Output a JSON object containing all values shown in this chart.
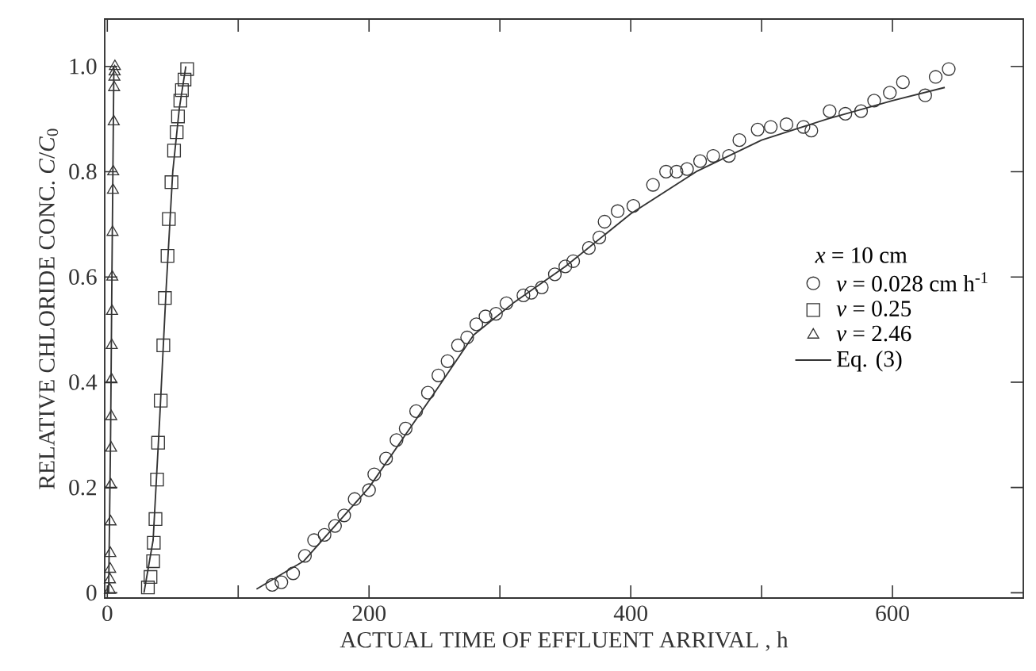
{
  "chart_data": {
    "type": "scatter",
    "xlabel": "ACTUAL TIME OF EFFLUENT ARRIVAL , h",
    "ylabel": "RELATIVE CHLORIDE CONC.  *C*/*C*$_{0}$",
    "legend_title": "*x* = 10 cm",
    "legend": "right",
    "xlim": [
      -2,
      700
    ],
    "ylim": [
      -0.01,
      1.09
    ],
    "xticks": [
      0,
      {
        "value": 100,
        "label": null
      },
      200,
      {
        "value": 300,
        "label": null
      },
      400,
      {
        "value": 500,
        "label": null
      },
      600
    ],
    "yticks": [
      0,
      0.2,
      0.4,
      0.6,
      0.8,
      {
        "value": 1,
        "label": "1.0"
      }
    ],
    "series": [
      {
        "name": "*v* = 0.028 cm h$^{-1}$",
        "color": "#333333",
        "marker": "circle",
        "x": [
          126,
          133,
          142,
          151,
          158,
          166,
          174,
          181,
          189,
          200,
          204,
          213,
          221,
          228,
          236,
          245,
          253,
          260,
          268,
          275,
          282,
          289,
          297,
          305,
          318,
          324,
          332,
          342,
          350,
          356,
          368,
          376,
          380,
          390,
          402,
          417,
          427,
          435,
          443,
          453,
          463,
          475,
          483,
          497,
          507,
          519,
          532,
          538,
          552,
          564,
          576,
          586,
          598,
          608,
          625,
          633,
          643
        ],
        "values": [
          0.015,
          0.02,
          0.037,
          0.07,
          0.1,
          0.11,
          0.127,
          0.147,
          0.178,
          0.195,
          0.225,
          0.255,
          0.29,
          0.312,
          0.345,
          0.38,
          0.413,
          0.44,
          0.47,
          0.485,
          0.51,
          0.525,
          0.53,
          0.55,
          0.565,
          0.57,
          0.58,
          0.605,
          0.62,
          0.63,
          0.655,
          0.675,
          0.705,
          0.725,
          0.735,
          0.775,
          0.8,
          0.8,
          0.805,
          0.82,
          0.83,
          0.83,
          0.86,
          0.88,
          0.885,
          0.89,
          0.885,
          0.878,
          0.915,
          0.91,
          0.915,
          0.935,
          0.95,
          0.97,
          0.945,
          0.98,
          0.995
        ]
      },
      {
        "name": "*v* = 0.25",
        "color": "#333333",
        "marker": "square",
        "x": [
          31,
          33,
          35,
          35.5,
          36.8,
          38,
          38.8,
          40.8,
          42.8,
          44,
          46,
          47,
          49,
          51,
          53,
          54,
          55.8,
          57,
          59,
          61
        ],
        "values": [
          0.01,
          0.03,
          0.06,
          0.095,
          0.14,
          0.215,
          0.285,
          0.365,
          0.47,
          0.56,
          0.64,
          0.71,
          0.78,
          0.84,
          0.875,
          0.905,
          0.935,
          0.955,
          0.975,
          0.995
        ]
      },
      {
        "name": "*v* = 2.46",
        "color": "#333333",
        "marker": "triangle",
        "x": [
          2,
          2,
          2.2,
          2.3,
          2.5,
          2.7,
          2.9,
          3,
          3.2,
          3.4,
          3.6,
          3.8,
          4,
          4.3,
          4.5,
          4.9,
          5.2,
          5.4,
          5.6,
          5.8
        ],
        "values": [
          0.005,
          0.025,
          0.045,
          0.075,
          0.135,
          0.205,
          0.275,
          0.335,
          0.405,
          0.47,
          0.535,
          0.6,
          0.685,
          0.765,
          0.8,
          0.895,
          0.96,
          0.98,
          0.99,
          1.0
        ]
      },
      {
        "name": "Eq. (3)",
        "type": "line",
        "color": "#333333",
        "marker": "none",
        "x": [
          114,
          150,
          200,
          250,
          280,
          310,
          350,
          400,
          450,
          500,
          550,
          600,
          640
        ],
        "values": [
          0.007,
          0.06,
          0.2,
          0.38,
          0.49,
          0.55,
          0.62,
          0.72,
          0.8,
          0.86,
          0.9,
          0.935,
          0.96
        ]
      },
      {
        "type": "line",
        "color": "#333333",
        "marker": "none",
        "x": [
          28,
          35,
          40,
          45,
          50,
          55,
          60
        ],
        "values": [
          0.0,
          0.1,
          0.33,
          0.58,
          0.8,
          0.92,
          1.0
        ]
      },
      {
        "type": "line",
        "color": "#333333",
        "marker": "none",
        "x": [
          1,
          2.5,
          3.5,
          5
        ],
        "values": [
          0.0,
          0.3,
          0.6,
          1.0
        ]
      }
    ]
  }
}
